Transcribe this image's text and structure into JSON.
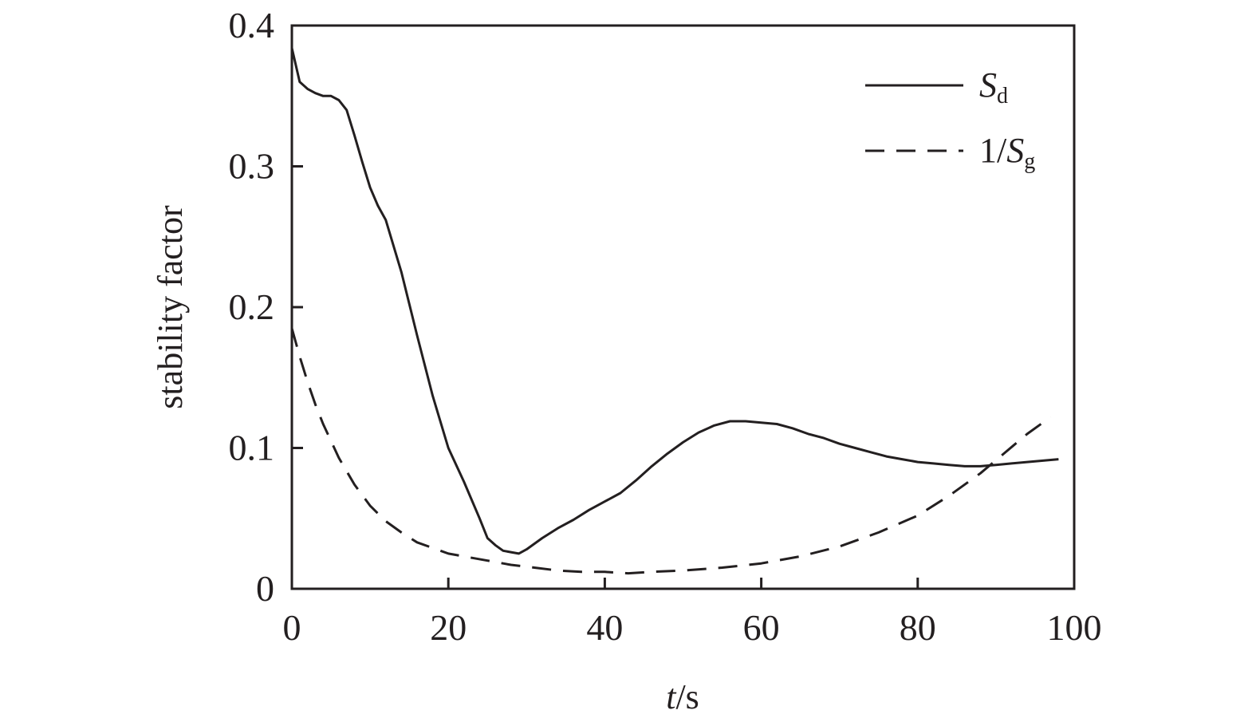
{
  "chart_data": {
    "type": "line",
    "xlabel": {
      "italic": "t",
      "rest": "/s"
    },
    "ylabel": "stability factor",
    "xlim": [
      0,
      100
    ],
    "ylim": [
      0,
      0.4
    ],
    "x_ticks": [
      0,
      20,
      40,
      60,
      80,
      100
    ],
    "x_tick_labels": [
      "0",
      "20",
      "40",
      "60",
      "80",
      "100"
    ],
    "y_ticks": [
      0,
      0.1,
      0.2,
      0.3,
      0.4
    ],
    "y_tick_labels": [
      "0",
      "0.1",
      "0.2",
      "0.3",
      "0.4"
    ],
    "grid": false,
    "legend_position": "top-right",
    "line_color": "#231f20",
    "series": [
      {
        "name": "S_d",
        "legend": {
          "pre": "",
          "main": "S",
          "sub": "d"
        },
        "style": "solid",
        "x": [
          0,
          1,
          2,
          3,
          4,
          5,
          6,
          7,
          8,
          9,
          10,
          11,
          12,
          14,
          16,
          18,
          20,
          22,
          24,
          25,
          26,
          27,
          28,
          29,
          30,
          32,
          34,
          36,
          38,
          40,
          42,
          44,
          46,
          48,
          50,
          52,
          54,
          56,
          58,
          60,
          62,
          64,
          66,
          68,
          70,
          72,
          74,
          76,
          78,
          80,
          82,
          84,
          86,
          88,
          90,
          92,
          94,
          96,
          98
        ],
        "y": [
          0.384,
          0.36,
          0.355,
          0.352,
          0.35,
          0.35,
          0.347,
          0.34,
          0.322,
          0.303,
          0.285,
          0.272,
          0.262,
          0.225,
          0.18,
          0.137,
          0.1,
          0.076,
          0.05,
          0.036,
          0.031,
          0.027,
          0.026,
          0.025,
          0.028,
          0.036,
          0.043,
          0.049,
          0.056,
          0.062,
          0.068,
          0.077,
          0.087,
          0.096,
          0.104,
          0.111,
          0.116,
          0.119,
          0.119,
          0.118,
          0.117,
          0.114,
          0.11,
          0.107,
          0.103,
          0.1,
          0.097,
          0.094,
          0.092,
          0.09,
          0.089,
          0.088,
          0.087,
          0.087,
          0.088,
          0.089,
          0.09,
          0.091,
          0.092
        ]
      },
      {
        "name": "1/S_g",
        "legend": {
          "pre": "1/",
          "main": "S",
          "sub": "g"
        },
        "style": "dashed",
        "x": [
          0,
          1,
          2,
          3,
          4,
          6,
          8,
          10,
          12,
          14,
          16,
          18,
          20,
          22,
          25,
          28,
          31,
          34,
          37,
          40,
          43,
          46,
          50,
          55,
          60,
          65,
          70,
          75,
          80,
          84,
          88,
          91,
          94,
          97
        ],
        "y": [
          0.185,
          0.165,
          0.147,
          0.131,
          0.117,
          0.093,
          0.074,
          0.059,
          0.048,
          0.04,
          0.033,
          0.029,
          0.025,
          0.023,
          0.02,
          0.017,
          0.015,
          0.013,
          0.012,
          0.012,
          0.011,
          0.012,
          0.013,
          0.015,
          0.018,
          0.023,
          0.03,
          0.04,
          0.052,
          0.066,
          0.082,
          0.096,
          0.11,
          0.122
        ]
      }
    ]
  }
}
